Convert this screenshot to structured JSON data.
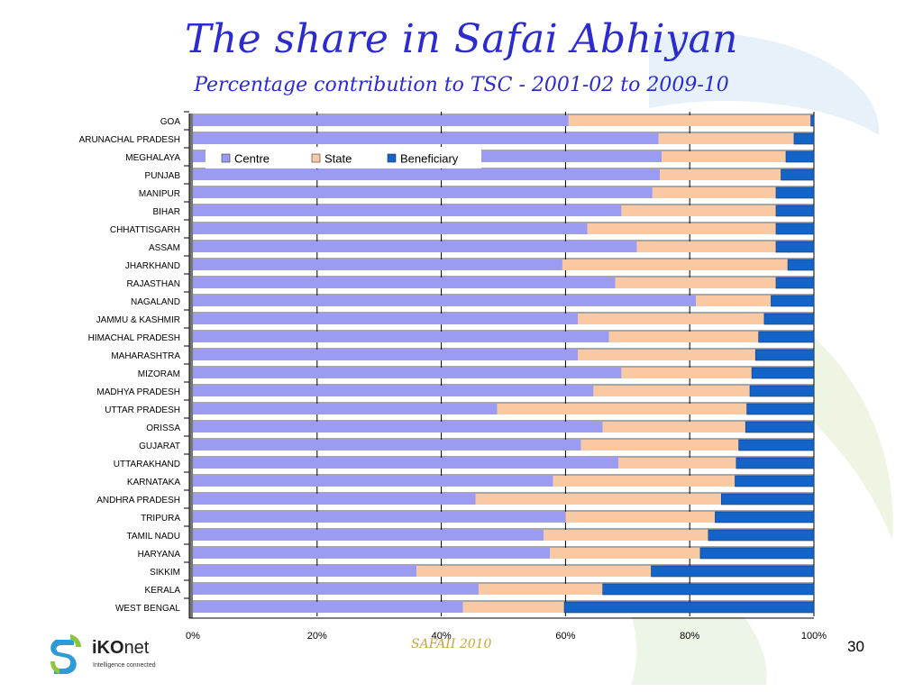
{
  "slide": {
    "title": "The share in Safai Abhiyan",
    "subtitle": "Percentage contribution to TSC  - 2001-02 to 2009-10",
    "footer_text": "SAFAII 2010",
    "page_number": "30"
  },
  "logo": {
    "brand_bold": "iKO",
    "brand_rest": "net",
    "tagline": "Intelligence connected"
  },
  "colors": {
    "centre": "#9b9bf2",
    "state": "#f9c9a4",
    "beneficiary": "#1464c8",
    "title": "#2b2bd0"
  },
  "chart_data": {
    "type": "bar",
    "orientation": "horizontal",
    "stacked": "percent",
    "title": "",
    "xlabel": "",
    "ylabel": "",
    "xlim": [
      0,
      100
    ],
    "x_ticks": [
      "0%",
      "20%",
      "40%",
      "60%",
      "80%",
      "100%"
    ],
    "grid": true,
    "legend_position": "top-left",
    "categories": [
      "GOA",
      "ARUNACHAL PRADESH",
      "MEGHALAYA",
      "PUNJAB",
      "MANIPUR",
      "BIHAR",
      "CHHATTISGARH",
      "ASSAM",
      "JHARKHAND",
      "RAJASTHAN",
      "NAGALAND",
      "JAMMU & KASHMIR",
      "HIMACHAL PRADESH",
      "MAHARASHTRA",
      "MIZORAM",
      "MADHYA PRADESH",
      "UTTAR PRADESH",
      "ORISSA",
      "GUJARAT",
      "UTTARAKHAND",
      "KARNATAKA",
      "ANDHRA PRADESH",
      "TRIPURA",
      "TAMIL NADU",
      "HARYANA",
      "SIKKIM",
      "KERALA",
      "WEST BENGAL"
    ],
    "series": [
      {
        "name": "Centre",
        "values": [
          60.5,
          75,
          75.5,
          75.2,
          74,
          69,
          63.5,
          71.5,
          59.5,
          68,
          81,
          62,
          67,
          62,
          69,
          64.5,
          49,
          66,
          62.5,
          68.5,
          58,
          45.5,
          60,
          56.5,
          57.5,
          36,
          46,
          43.5
        ]
      },
      {
        "name": "State",
        "values": [
          39,
          21.8,
          20,
          19.5,
          19.9,
          24.9,
          30.4,
          22.4,
          36.3,
          25.9,
          12.1,
          30,
          24.1,
          28.6,
          21,
          25.2,
          40.2,
          23,
          25.4,
          19,
          29.3,
          39.6,
          24.1,
          26.5,
          24.2,
          37.8,
          20,
          16.3
        ]
      },
      {
        "name": "Beneficiary",
        "values": [
          0.5,
          3.2,
          4.5,
          5.3,
          6.1,
          6.1,
          6.1,
          6.1,
          4.2,
          6.1,
          6.9,
          8,
          8.9,
          9.4,
          10,
          10.3,
          10.8,
          11,
          12.1,
          12.5,
          12.7,
          14.9,
          15.9,
          17,
          18.3,
          26.2,
          34,
          40.2
        ]
      }
    ]
  }
}
